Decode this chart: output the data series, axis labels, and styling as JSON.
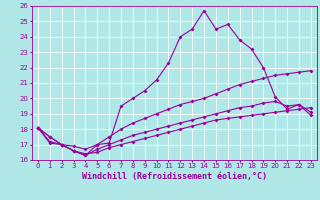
{
  "xlabel": "Windchill (Refroidissement éolien,°C)",
  "bg_color": "#b0e8e8",
  "line_color": "#990099",
  "grid_color": "#ffffff",
  "xlim": [
    -0.5,
    23.5
  ],
  "ylim": [
    16,
    26
  ],
  "xticks": [
    0,
    1,
    2,
    3,
    4,
    5,
    6,
    7,
    8,
    9,
    10,
    11,
    12,
    13,
    14,
    15,
    16,
    17,
    18,
    19,
    20,
    21,
    22,
    23
  ],
  "yticks": [
    16,
    17,
    18,
    19,
    20,
    21,
    22,
    23,
    24,
    25,
    26
  ],
  "line1_x": [
    0,
    1,
    2,
    3,
    4,
    5,
    6,
    7,
    8,
    9,
    10,
    11,
    12,
    13,
    14,
    15,
    16,
    17,
    18,
    19,
    20,
    21,
    22,
    23
  ],
  "line1_y": [
    18.1,
    17.5,
    17.0,
    16.6,
    16.3,
    17.0,
    17.1,
    19.5,
    20.0,
    20.5,
    21.2,
    22.3,
    24.0,
    24.5,
    25.7,
    24.5,
    24.8,
    23.8,
    23.2,
    22.0,
    20.1,
    19.3,
    19.6,
    18.9
  ],
  "line2_x": [
    0,
    1,
    2,
    3,
    4,
    5,
    6,
    7,
    8,
    9,
    10,
    11,
    12,
    13,
    14,
    15,
    16,
    17,
    18,
    19,
    20,
    21,
    22,
    23
  ],
  "line2_y": [
    18.1,
    17.5,
    17.0,
    16.9,
    16.7,
    17.0,
    17.5,
    18.0,
    18.4,
    18.7,
    19.0,
    19.3,
    19.6,
    19.8,
    20.0,
    20.3,
    20.6,
    20.9,
    21.1,
    21.3,
    21.5,
    21.6,
    21.7,
    21.8
  ],
  "line3_x": [
    0,
    1,
    2,
    3,
    4,
    5,
    6,
    7,
    8,
    9,
    10,
    11,
    12,
    13,
    14,
    15,
    16,
    17,
    18,
    19,
    20,
    21,
    22,
    23
  ],
  "line3_y": [
    18.1,
    17.2,
    17.0,
    16.6,
    16.3,
    16.7,
    17.0,
    17.3,
    17.6,
    17.8,
    18.0,
    18.2,
    18.4,
    18.6,
    18.8,
    19.0,
    19.2,
    19.4,
    19.5,
    19.7,
    19.8,
    19.5,
    19.6,
    19.1
  ],
  "line4_x": [
    0,
    1,
    2,
    3,
    4,
    5,
    6,
    7,
    8,
    9,
    10,
    11,
    12,
    13,
    14,
    15,
    16,
    17,
    18,
    19,
    20,
    21,
    22,
    23
  ],
  "line4_y": [
    18.1,
    17.1,
    17.0,
    16.6,
    16.4,
    16.5,
    16.8,
    17.0,
    17.2,
    17.4,
    17.6,
    17.8,
    18.0,
    18.2,
    18.4,
    18.6,
    18.7,
    18.8,
    18.9,
    19.0,
    19.1,
    19.2,
    19.3,
    19.4
  ],
  "marker": "D",
  "markersize": 2,
  "linewidth": 0.8,
  "tick_fontsize": 5,
  "xlabel_fontsize": 6
}
